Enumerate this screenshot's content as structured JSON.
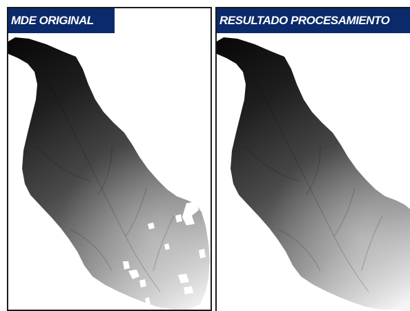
{
  "panels": {
    "left": {
      "title": "MDE ORIGINAL"
    },
    "right": {
      "title": "RESULTADO PROCESAMIENTO"
    }
  },
  "colors": {
    "title_background": "#0b2a6b",
    "title_text": "#ffffff",
    "elevation_high": "#000000",
    "elevation_low": "#f2f2f2"
  }
}
